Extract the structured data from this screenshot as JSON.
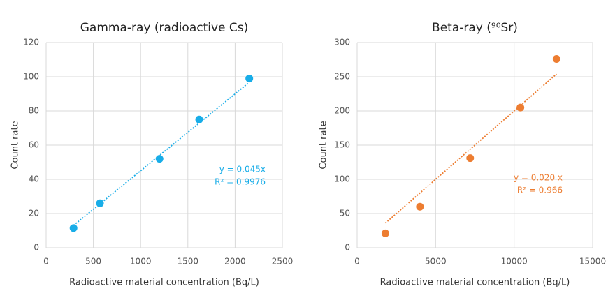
{
  "chart_data": [
    {
      "type": "scatter",
      "title": "Gamma-ray (radioactive Cs)",
      "x_label": "Radioactive material concentration (Bq/L)",
      "y_label": "Count rate",
      "x": [
        290,
        570,
        1200,
        1620,
        2150
      ],
      "values": [
        11.5,
        26,
        52,
        75,
        99
      ],
      "color": "#18ade8",
      "xlim": [
        0,
        2500
      ],
      "xticks": [
        0,
        500,
        1000,
        1500,
        2000,
        2500
      ],
      "ylim": [
        0,
        120
      ],
      "yticks": [
        0,
        20,
        40,
        60,
        80,
        100,
        120
      ],
      "grid": true,
      "trendline": {
        "slope": 0.045,
        "equation": "y = 0.045x",
        "r2": "R² = 0.9976"
      }
    },
    {
      "type": "scatter",
      "title": "Beta-ray (⁹⁰Sr)",
      "x_label": "Radioactive material concentration (Bq/L)",
      "y_label": "Count rate",
      "x": [
        1800,
        4000,
        7200,
        10400,
        12700
      ],
      "values": [
        21,
        60,
        131,
        205,
        276
      ],
      "color": "#ed7d31",
      "xlim": [
        0,
        15000
      ],
      "xticks": [
        0,
        5000,
        10000,
        15000
      ],
      "ylim": [
        0,
        300
      ],
      "yticks": [
        0,
        50,
        100,
        150,
        200,
        250,
        300
      ],
      "grid": true,
      "trendline": {
        "slope": 0.02,
        "equation": "y = 0.020 x",
        "r2": "R² = 0.966"
      }
    }
  ]
}
